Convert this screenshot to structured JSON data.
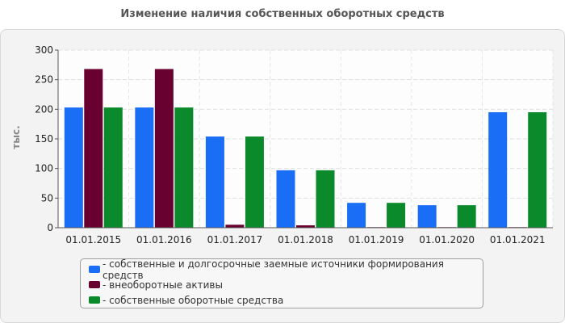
{
  "chart_data": {
    "type": "bar",
    "title": "Изменение наличия собственных оборотных средств",
    "ylabel": "тыс.",
    "xlabel": "",
    "ylim": [
      0,
      300
    ],
    "yticks": [
      0,
      50,
      100,
      150,
      200,
      250,
      300
    ],
    "grid": true,
    "legend_position": "bottom",
    "categories": [
      "01.01.2015",
      "01.01.2016",
      "01.01.2017",
      "01.01.2018",
      "01.01.2019",
      "01.01.2020",
      "01.01.2021"
    ],
    "series": [
      {
        "name": "- собственные и долгосрочные заемные источники формирования средств",
        "color": "#1a6ef5",
        "values": [
          203,
          203,
          154,
          97,
          42,
          38,
          195
        ]
      },
      {
        "name": "- внеоборотные активы",
        "color": "#680030",
        "values": [
          268,
          268,
          5,
          4,
          1,
          1,
          1
        ]
      },
      {
        "name": "- собственные оборотные средства",
        "color": "#0a8a2a",
        "values": [
          203,
          203,
          154,
          97,
          42,
          38,
          195
        ]
      }
    ]
  }
}
